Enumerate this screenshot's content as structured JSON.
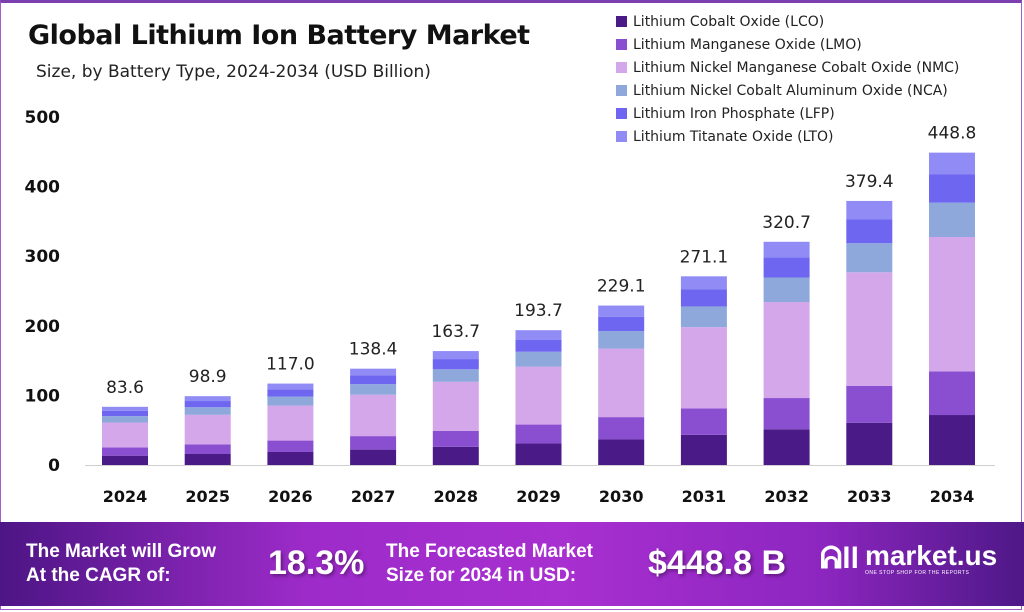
{
  "chart_data": {
    "type": "bar",
    "stacked": true,
    "title": "Global Lithium Ion Battery Market",
    "subtitle": "Size, by Battery Type, 2024-2034 (USD Billion)",
    "categories": [
      "2024",
      "2025",
      "2026",
      "2027",
      "2028",
      "2029",
      "2030",
      "2031",
      "2032",
      "2033",
      "2034"
    ],
    "totals": [
      "83.6",
      "98.9",
      "117.0",
      "138.4",
      "163.7",
      "193.7",
      "229.1",
      "271.1",
      "320.7",
      "379.4",
      "448.8"
    ],
    "series": [
      {
        "name": "Lithium Cobalt Oxide (LCO)",
        "color": "#4a1a86",
        "values": [
          13.4,
          15.8,
          18.7,
          22.1,
          26.2,
          31.0,
          36.7,
          43.4,
          51.3,
          60.7,
          71.8
        ]
      },
      {
        "name": "Lithium Manganese Oxide (LMO)",
        "color": "#8a4fd0",
        "values": [
          11.7,
          13.8,
          16.4,
          19.4,
          22.9,
          27.1,
          32.1,
          38.0,
          44.9,
          53.1,
          62.8
        ]
      },
      {
        "name": "Lithium Nickel Manganese Cobalt Oxide (NMC)",
        "color": "#d4a6ea",
        "values": [
          35.9,
          42.5,
          50.3,
          59.5,
          70.4,
          83.3,
          98.5,
          116.6,
          137.9,
          163.1,
          193.0
        ]
      },
      {
        "name": "Lithium Nickel Cobalt Aluminum Oxide (NCA)",
        "color": "#8fa8dc",
        "values": [
          9.2,
          10.9,
          12.9,
          15.2,
          18.0,
          21.3,
          25.2,
          29.8,
          35.3,
          41.7,
          49.4
        ]
      },
      {
        "name": "Lithium Iron Phosphate (LFP)",
        "color": "#6e66f0",
        "values": [
          7.5,
          8.9,
          10.5,
          12.5,
          14.7,
          17.4,
          20.6,
          24.4,
          28.9,
          34.1,
          40.4
        ]
      },
      {
        "name": "Lithium Titanate Oxide (LTO)",
        "color": "#918cf5",
        "values": [
          5.9,
          7.0,
          8.2,
          9.7,
          11.5,
          13.6,
          16.0,
          18.9,
          22.4,
          26.7,
          31.4
        ]
      }
    ],
    "yticks": [
      "0",
      "100",
      "200",
      "300",
      "400",
      "500"
    ],
    "ylim": [
      0,
      500
    ],
    "grid": false,
    "legend": "top-right"
  },
  "footer": {
    "cagr_label_1": "The Market will Grow",
    "cagr_label_2": "At the CAGR of:",
    "cagr_value": "18.3%",
    "forecast_label_1": "The Forecasted Market",
    "forecast_label_2": "Size for 2034 in USD:",
    "forecast_value": "$448.8 B",
    "brand": "market.us",
    "tagline": "ONE STOP SHOP FOR THE REPORTS"
  }
}
